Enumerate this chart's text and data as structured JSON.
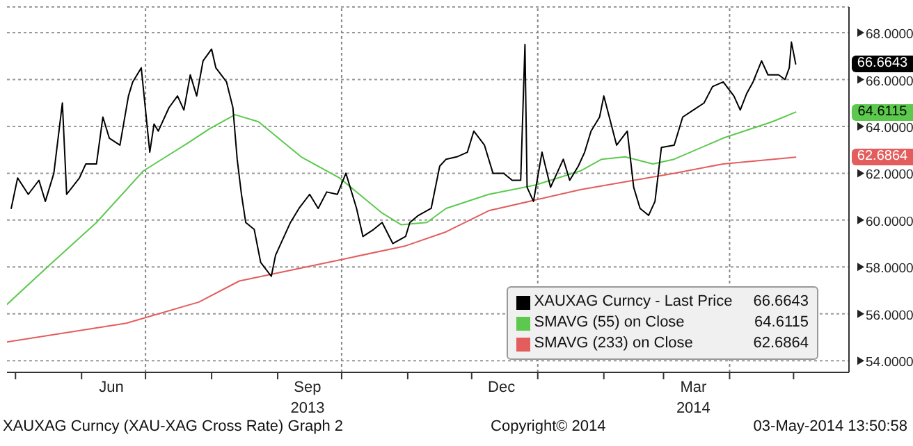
{
  "chart_data": {
    "type": "line",
    "xlim": [
      "2013-04-27",
      "2014-05-27"
    ],
    "xticks": [
      {
        "value": "2013-05-01",
        "label": null
      },
      {
        "value": "2013-06-01",
        "label": null
      },
      {
        "value": "2013-06-15",
        "label": "Jun"
      },
      {
        "value": "2013-07-01",
        "label": null
      },
      {
        "value": "2013-08-01",
        "label": null
      },
      {
        "value": "2013-09-01",
        "label": null
      },
      {
        "value": "2013-09-15",
        "label": "Sep\n2013"
      },
      {
        "value": "2013-10-01",
        "label": null
      },
      {
        "value": "2013-11-01",
        "label": null
      },
      {
        "value": "2013-12-01",
        "label": null
      },
      {
        "value": "2013-12-15",
        "label": "Dec"
      },
      {
        "value": "2014-01-01",
        "label": null
      },
      {
        "value": "2014-02-01",
        "label": null
      },
      {
        "value": "2014-03-01",
        "label": null
      },
      {
        "value": "2014-03-15",
        "label": "Mar\n2014"
      },
      {
        "value": "2014-04-01",
        "label": null
      },
      {
        "value": "2014-05-01",
        "label": null
      }
    ],
    "ylim": [
      53.5,
      69.1
    ],
    "yticks": [
      {
        "value": 54,
        "label": "54.0000"
      },
      {
        "value": 56,
        "label": "56.0000"
      },
      {
        "value": 58,
        "label": "58.0000"
      },
      {
        "value": 60,
        "label": "60.0000"
      },
      {
        "value": 62,
        "label": "62.0000"
      },
      {
        "value": 64,
        "label": "64.0000"
      },
      {
        "value": 66,
        "label": "66.0000"
      },
      {
        "value": 68,
        "label": "68.0000"
      }
    ],
    "grid": "y",
    "legend": "bottom right",
    "ref_lines": [
      {
        "axis": "x",
        "value": "2013-07-01",
        "color": "#888888",
        "line_style": "dotted"
      },
      {
        "axis": "x",
        "value": "2013-10-01",
        "color": "#888888",
        "line_style": "dotted"
      },
      {
        "axis": "x",
        "value": "2014-01-01",
        "color": "#888888",
        "line_style": "dotted"
      },
      {
        "axis": "x",
        "value": "2014-04-01",
        "color": "#888888",
        "line_style": "dotted"
      }
    ],
    "annotations": [
      "XAUXAG Curncy (XAU-XAG Cross Rate) Graph 2",
      "Copyright© 2014",
      "03-May-2014 13:50:58",
      "66.6643",
      "64.6115",
      "62.6864"
    ],
    "series": [
      {
        "name": "XAUXAG Curncy - Last Price",
        "color": "#000000",
        "x": [
          "2013-04-29",
          "2013-05-02",
          "2013-05-07",
          "2013-05-12",
          "2013-05-15",
          "2013-05-19",
          "2013-05-23",
          "2013-05-25",
          "2013-05-31",
          "2013-06-03",
          "2013-06-08",
          "2013-06-11",
          "2013-06-14",
          "2013-06-19",
          "2013-06-23",
          "2013-06-25",
          "2013-06-29",
          "2013-07-03",
          "2013-07-05",
          "2013-07-07",
          "2013-07-12",
          "2013-07-16",
          "2013-07-19",
          "2013-07-22",
          "2013-07-25",
          "2013-07-28",
          "2013-08-01",
          "2013-08-03",
          "2013-08-08",
          "2013-08-11",
          "2013-08-13",
          "2013-08-15",
          "2013-08-17",
          "2013-08-21",
          "2013-08-24",
          "2013-08-29",
          "2013-08-31",
          "2013-09-04",
          "2013-09-07",
          "2013-09-11",
          "2013-09-16",
          "2013-09-20",
          "2013-09-24",
          "2013-09-29",
          "2013-10-03",
          "2013-10-08",
          "2013-10-11",
          "2013-10-16",
          "2013-10-20",
          "2013-10-25",
          "2013-10-31",
          "2013-11-02",
          "2013-11-06",
          "2013-11-12",
          "2013-11-16",
          "2013-11-19",
          "2013-11-24",
          "2013-11-29",
          "2013-12-02",
          "2013-12-07",
          "2013-12-11",
          "2013-12-16",
          "2013-12-20",
          "2013-12-24",
          "2013-12-26",
          "2013-12-27",
          "2013-12-30",
          "2014-01-03",
          "2014-01-07",
          "2014-01-10",
          "2014-01-13",
          "2014-01-16",
          "2014-01-20",
          "2014-01-23",
          "2014-01-26",
          "2014-01-30",
          "2014-02-01",
          "2014-02-07",
          "2014-02-12",
          "2014-02-15",
          "2014-02-18",
          "2014-02-22",
          "2014-02-25",
          "2014-02-28",
          "2014-03-06",
          "2014-03-10",
          "2014-03-15",
          "2014-03-20",
          "2014-03-24",
          "2014-03-29",
          "2014-04-03",
          "2014-04-06",
          "2014-04-09",
          "2014-04-12",
          "2014-04-16",
          "2014-04-19",
          "2014-04-24",
          "2014-04-27",
          "2014-04-29",
          "2014-04-30",
          "2014-05-02"
        ],
        "values": [
          60.5,
          61.8,
          61.1,
          61.7,
          60.8,
          62.0,
          65.0,
          61.1,
          61.8,
          62.4,
          62.4,
          64.4,
          63.5,
          63.2,
          65.3,
          65.9,
          66.5,
          62.9,
          64.1,
          63.8,
          64.8,
          65.3,
          64.7,
          66.2,
          65.3,
          66.8,
          67.3,
          66.5,
          65.9,
          64.8,
          62.6,
          61.1,
          59.9,
          59.6,
          58.2,
          57.6,
          58.5,
          59.3,
          59.9,
          60.5,
          61.1,
          60.5,
          61.2,
          61.1,
          62.0,
          60.5,
          59.3,
          59.6,
          59.9,
          59.0,
          59.3,
          59.9,
          60.2,
          60.5,
          62.3,
          62.6,
          62.7,
          62.9,
          63.8,
          63.2,
          62.0,
          62.0,
          61.7,
          61.7,
          67.5,
          61.4,
          60.8,
          62.9,
          61.4,
          62.0,
          62.6,
          61.7,
          62.3,
          62.9,
          63.8,
          64.4,
          65.3,
          63.2,
          63.8,
          61.4,
          60.5,
          60.2,
          60.8,
          63.1,
          63.2,
          64.4,
          64.7,
          65.0,
          65.7,
          65.9,
          65.3,
          64.7,
          65.4,
          65.9,
          66.8,
          66.2,
          66.2,
          66.0,
          66.5,
          67.6,
          66.6643
        ]
      },
      {
        "name": "SMAVG (55) on Close",
        "color": "#5cc94e",
        "x": [
          "2013-04-27",
          "2013-05-16",
          "2013-06-08",
          "2013-06-30",
          "2013-07-21",
          "2013-07-31",
          "2013-08-12",
          "2013-08-23",
          "2013-09-12",
          "2013-09-30",
          "2013-10-20",
          "2013-10-29",
          "2013-11-10",
          "2013-11-19",
          "2013-12-09",
          "2013-12-31",
          "2014-01-21",
          "2014-01-31",
          "2014-02-11",
          "2014-02-24",
          "2014-03-06",
          "2014-03-29",
          "2014-04-21",
          "2014-05-02"
        ],
        "values": [
          56.4,
          58.0,
          59.9,
          62.1,
          63.3,
          63.9,
          64.5,
          64.2,
          62.7,
          61.8,
          60.3,
          59.8,
          59.9,
          60.5,
          61.1,
          61.5,
          62.1,
          62.6,
          62.7,
          62.4,
          62.6,
          63.5,
          64.2,
          64.6115
        ]
      },
      {
        "name": "SMAVG (233) on Close",
        "color": "#e35d5d",
        "x": [
          "2013-04-27",
          "2013-06-22",
          "2013-07-26",
          "2013-08-14",
          "2013-09-30",
          "2013-10-31",
          "2013-11-19",
          "2013-12-09",
          "2014-01-21",
          "2014-03-06",
          "2014-03-29",
          "2014-05-02"
        ],
        "values": [
          54.8,
          55.6,
          56.5,
          57.4,
          58.3,
          58.9,
          59.5,
          60.4,
          61.3,
          62.0,
          62.4,
          62.6864
        ]
      }
    ]
  }
}
